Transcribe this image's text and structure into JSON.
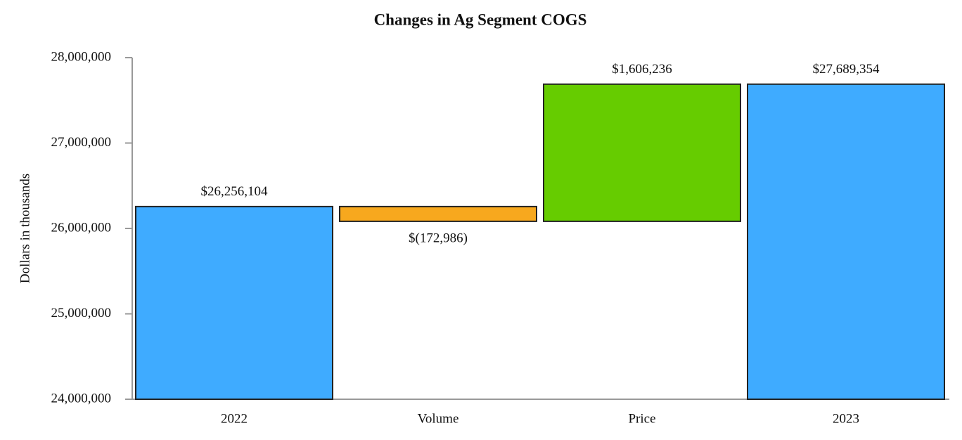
{
  "chart_data": {
    "type": "waterfall",
    "title": "Changes in Ag Segment COGS",
    "y_label": "Dollars in thousands",
    "categories": [
      "2022",
      "Volume",
      "Price",
      "2023"
    ],
    "values": [
      26256104,
      -172986,
      1606236,
      27689354
    ],
    "value_labels": [
      "$26,256,104",
      "$(172,986)",
      "$1,606,236",
      "$27,689,354"
    ],
    "measure": [
      "absolute",
      "relative",
      "relative",
      "total"
    ],
    "colors": [
      "#3fabff",
      "#f7a81e",
      "#66cc00",
      "#3fabff"
    ],
    "ylim": [
      24000000,
      28000000
    ],
    "yticks": [
      {
        "value": 24000000,
        "label": "24,000,000"
      },
      {
        "value": 25000000,
        "label": "25,000,000"
      },
      {
        "value": 26000000,
        "label": "26,000,000"
      },
      {
        "value": 27000000,
        "label": "27,000,000"
      },
      {
        "value": 28000000,
        "label": "28,000,000"
      }
    ],
    "grid": false
  }
}
